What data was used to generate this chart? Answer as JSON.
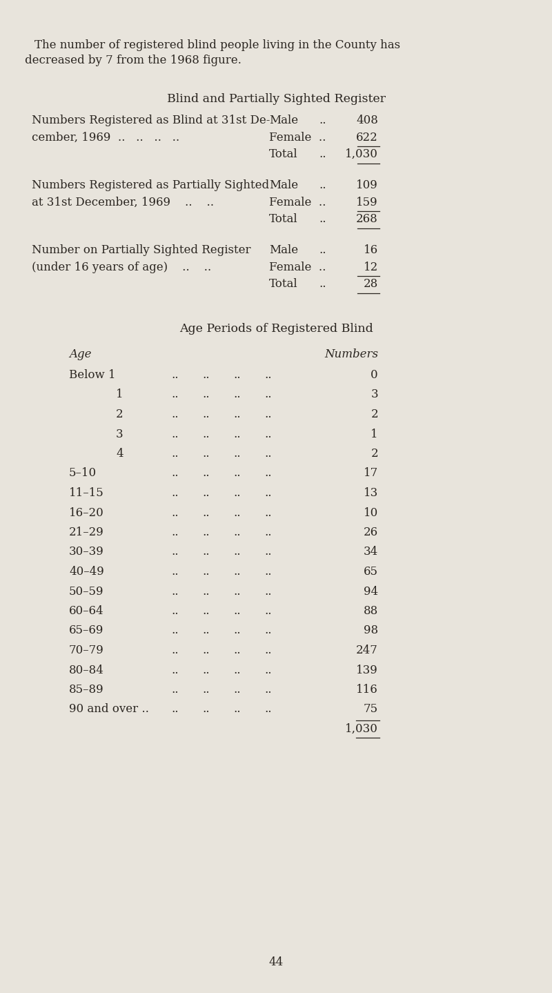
{
  "bg_color": "#e8e4dc",
  "text_color": "#2a2520",
  "figsize": [
    8.0,
    14.39
  ],
  "dpi": 100,
  "page_number": "44",
  "intro_line1": "The number of registered blind people living in the County has",
  "intro_line2": "decreased by 7 from the 1968 figure.",
  "sec1_title_caps": "Bʟɪɴᴅ  ᴀɴᴅ  Pᴀʀᴛɪᴀʟʟʟʟ  Sɪɢʜᴛᴇᴅ  Rᴇɢɪsᴛᴇʀ",
  "sec1_title": "Blind and Partially Sighted Register",
  "sec1_left_col": [
    [
      "Numbers Registered as Blind at 31st De-",
      "cember, 1969  ..   ..   ..   .."
    ],
    [
      "Numbers Registered as Partially Sighted",
      "at 31st December, 1969    ..    .."
    ],
    [
      "Number on Partially Sighted Register",
      "(under 16 years of age)    ..    .."
    ]
  ],
  "sec1_right_col": [
    [
      [
        "Male",
        "..",
        "408"
      ],
      [
        "Female",
        "..",
        "622"
      ],
      [
        "Total",
        "..",
        "1,030"
      ]
    ],
    [
      [
        "Male",
        "..",
        "109"
      ],
      [
        "Female",
        "..",
        "159"
      ],
      [
        "Total",
        "..",
        "268"
      ]
    ],
    [
      [
        "Male",
        "..",
        "16"
      ],
      [
        "Female",
        "..",
        "12"
      ],
      [
        "Total",
        "..",
        "28"
      ]
    ]
  ],
  "sec2_title": "Age Periods of Registered Blind",
  "sec2_col_age": "Age",
  "sec2_col_num": "Numbers",
  "age_data": [
    [
      "Below 1",
      "0",
      false
    ],
    [
      "1",
      "3",
      false
    ],
    [
      "2",
      "2",
      false
    ],
    [
      "3",
      "1",
      false
    ],
    [
      "4",
      "2",
      false
    ],
    [
      "5–10",
      "17",
      false
    ],
    [
      "11–15",
      "13",
      false
    ],
    [
      "16–20",
      "10",
      false
    ],
    [
      "21–29",
      "26",
      false
    ],
    [
      "30–39",
      "34",
      false
    ],
    [
      "40–49",
      "65",
      false
    ],
    [
      "50–59",
      "94",
      false
    ],
    [
      "60–64",
      "88",
      false
    ],
    [
      "65–69",
      "98",
      false
    ],
    [
      "70–79",
      "247",
      false
    ],
    [
      "80–84",
      "139",
      false
    ],
    [
      "85–89",
      "116",
      false
    ],
    [
      "90 and over ..",
      "75",
      false
    ],
    [
      "",
      "1,030",
      true
    ]
  ]
}
